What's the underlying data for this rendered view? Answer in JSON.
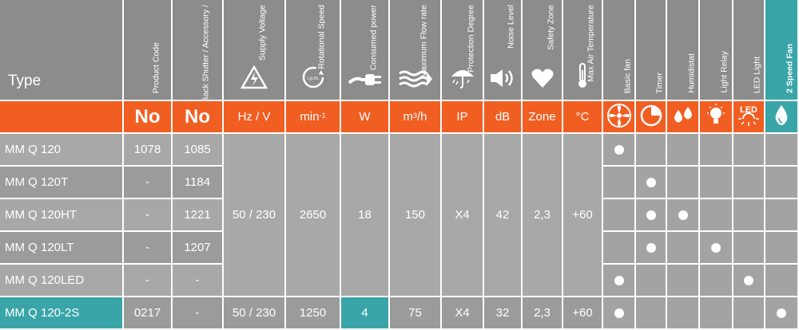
{
  "colors": {
    "header_grey": "#8c8c8c",
    "orange": "#f15e22",
    "teal": "#3aa5a9",
    "body_grey": "#a8a8a8",
    "text": "#ffffff"
  },
  "headers": {
    "type": "Type",
    "product_code": "Product Code",
    "product_code_shutter": "Product Code with Back Shutter / Accessory /",
    "supply_voltage": "Supply Voltage",
    "rotational_speed": "Rotational Speed",
    "rotational_speed_icon_text": "r.p.m.",
    "consumed_power": "Consumed power",
    "max_flow_rate": "Maximum Flow rate",
    "protection_degree": "Protection Degree",
    "noise_level": "Noise Level",
    "safety_zone": "Safety Zone",
    "max_air_temp": "Max Air Temperature",
    "basic_fan": "Basic fan",
    "timer": "Timer",
    "humidistat": "Humidistat",
    "light_relay": "Light Relay",
    "led_light": "LED Light",
    "two_speed_fan": "2 Speed Fan",
    "led_icon_text": "LED"
  },
  "units": {
    "no1": "No",
    "no2": "No",
    "voltage": "Hz / V",
    "speed": "min",
    "speed_sup": "-1",
    "power": "W",
    "flow": "m",
    "flow_sup": "3",
    "flow_suffix": "/h",
    "ip": "IP",
    "noise": "dB",
    "zone": "Zone",
    "temp": "°C"
  },
  "rows": [
    {
      "name": "MM Q 120",
      "code": "1078",
      "code_shutter": "1085",
      "features": [
        true,
        false,
        false,
        false,
        false,
        false
      ]
    },
    {
      "name": "MM Q 120T",
      "code": "-",
      "code_shutter": "1184",
      "features": [
        false,
        true,
        false,
        false,
        false,
        false
      ]
    },
    {
      "name": "MM Q 120HT",
      "code": "-",
      "code_shutter": "1221",
      "features": [
        false,
        true,
        true,
        false,
        false,
        false
      ]
    },
    {
      "name": "MM Q 120LT",
      "code": "-",
      "code_shutter": "1207",
      "features": [
        false,
        true,
        false,
        true,
        false,
        false
      ]
    },
    {
      "name": "MM Q 120LED",
      "code": "-",
      "code_shutter": "-",
      "features": [
        true,
        false,
        false,
        false,
        true,
        false
      ]
    }
  ],
  "shared_specs": {
    "voltage": "50 / 230",
    "speed": "2650",
    "power": "18",
    "flow": "150",
    "ip": "X4",
    "noise": "42",
    "zone": "2,3",
    "temp": "+60"
  },
  "last_row": {
    "name": "MM Q 120-2S",
    "code": "0217",
    "code_shutter": "-",
    "voltage": "50 / 230",
    "speed": "1250",
    "power": "4",
    "flow": "75",
    "ip": "X4",
    "noise": "32",
    "zone": "2,3",
    "temp": "+60",
    "features": [
      true,
      false,
      false,
      false,
      false,
      true
    ]
  }
}
